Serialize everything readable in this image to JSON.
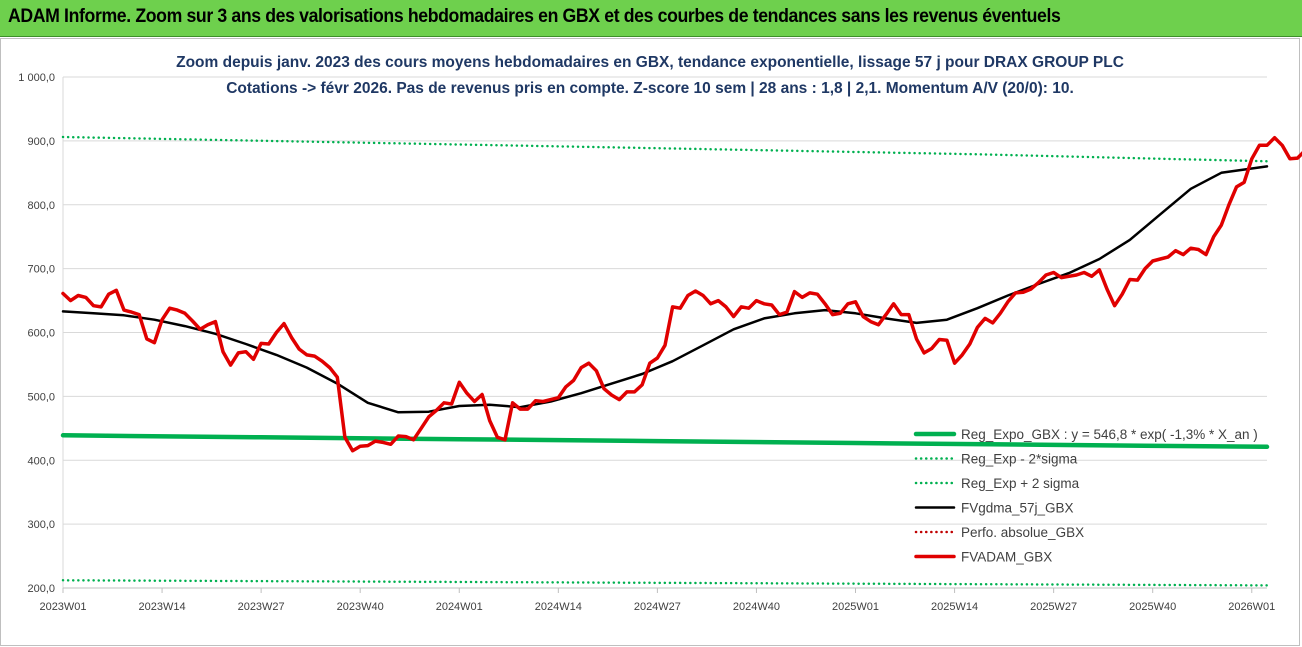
{
  "header": {
    "title": "ADAM Informe. Zoom sur 3 ans des valorisations hebdomadaires en GBX et des courbes de tendances sans les revenus éventuels"
  },
  "chart_data": {
    "type": "line",
    "title": "Zoom depuis janv. 2023 des cours moyens hebdomadaires en GBX, tendance exponentielle, lissage 57 j pour DRAX GROUP PLC",
    "subtitle": "Cotations -> févr 2026. Pas de revenus pris en compte. Z-score 10 sem | 28 ans : 1,8 | 2,1. Momentum A/V (20/0): 10.",
    "xlabel": "",
    "ylabel": "",
    "ylim": [
      200,
      1000
    ],
    "yticks": [
      "200,0",
      "300,0",
      "400,0",
      "500,0",
      "600,0",
      "700,0",
      "800,0",
      "900,0",
      "1 000,0"
    ],
    "x_tick_labels": [
      "2023W01",
      "2023W14",
      "2023W27",
      "2023W40",
      "2024W01",
      "2024W14",
      "2024W27",
      "2024W40",
      "2025W01",
      "2025W14",
      "2025W27",
      "2025W40",
      "2026W01"
    ],
    "x_tick_every_weeks": 13,
    "grid": "horizontal",
    "legend_position": "bottom-right",
    "series": [
      {
        "name": "Reg_Expo_GBX : y = 546,8 * exp( -1,3% * X_an )",
        "color": "#00b050",
        "style": "solid-thick",
        "values": [
          439,
          436,
          433,
          430,
          427,
          424,
          421
        ],
        "x_weeks": [
          0,
          26,
          52,
          78,
          104,
          130,
          158
        ]
      },
      {
        "name": "Reg_Exp - 2*sigma",
        "color": "#00b050",
        "style": "dotted",
        "values": [
          212,
          210,
          208,
          206,
          204
        ],
        "x_weeks": [
          0,
          40,
          80,
          120,
          158
        ]
      },
      {
        "name": "Reg_Exp + 2 sigma",
        "color": "#00b050",
        "style": "dotted",
        "values": [
          906,
          897,
          888,
          879,
          868
        ],
        "x_weeks": [
          0,
          40,
          80,
          120,
          158
        ]
      },
      {
        "name": "FVgdma_57j_GBX",
        "color": "#000000",
        "style": "solid",
        "values": [
          633,
          630,
          627,
          620,
          610,
          598,
          582,
          565,
          545,
          520,
          490,
          475,
          476,
          485,
          487,
          483,
          492,
          505,
          520,
          535,
          555,
          580,
          605,
          622,
          630,
          635,
          630,
          622,
          615,
          620,
          638,
          658,
          676,
          693,
          715,
          745,
          785,
          825,
          850,
          860
        ],
        "x_weeks": [
          0,
          4,
          8,
          12,
          16,
          20,
          24,
          28,
          32,
          36,
          40,
          44,
          48,
          52,
          56,
          60,
          64,
          68,
          72,
          76,
          80,
          84,
          88,
          92,
          96,
          100,
          104,
          108,
          112,
          116,
          120,
          124,
          128,
          132,
          136,
          140,
          144,
          148,
          152,
          158
        ]
      },
      {
        "name": "Perfo. absolue_GBX",
        "color": "#c00000",
        "style": "dotted",
        "values": [],
        "x_weeks": []
      },
      {
        "name": "FVADAM_GBX",
        "color": "#e00000",
        "style": "solid-thick",
        "values": [
          661,
          650,
          658,
          655,
          642,
          640,
          660,
          666,
          635,
          632,
          628,
          590,
          584,
          620,
          638,
          635,
          630,
          618,
          605,
          612,
          617,
          570,
          549,
          568,
          570,
          558,
          583,
          582,
          600,
          614,
          592,
          574,
          565,
          563,
          555,
          545,
          530,
          436,
          415,
          422,
          423,
          430,
          428,
          425,
          438,
          437,
          432,
          450,
          468,
          478,
          490,
          488,
          522,
          505,
          492,
          503,
          462,
          436,
          432,
          490,
          480,
          480,
          493,
          492,
          495,
          498,
          515,
          525,
          545,
          552,
          540,
          512,
          502,
          495,
          507,
          507,
          518,
          552,
          560,
          580,
          640,
          638,
          658,
          665,
          658,
          645,
          650,
          640,
          625,
          640,
          638,
          650,
          645,
          643,
          628,
          632,
          664,
          655,
          662,
          660,
          645,
          628,
          630,
          645,
          648,
          625,
          617,
          612,
          628,
          645,
          628,
          628,
          590,
          568,
          575,
          589,
          588,
          552,
          565,
          582,
          608,
          622,
          615,
          630,
          648,
          662,
          663,
          668,
          678,
          690,
          694,
          686,
          688,
          690,
          694,
          688,
          698,
          668,
          642,
          660,
          683,
          682,
          700,
          712,
          715,
          718,
          728,
          722,
          732,
          730,
          722,
          750,
          768,
          800,
          828,
          835,
          872,
          893,
          893,
          905,
          893,
          872,
          873,
          885
        ]
      }
    ]
  }
}
